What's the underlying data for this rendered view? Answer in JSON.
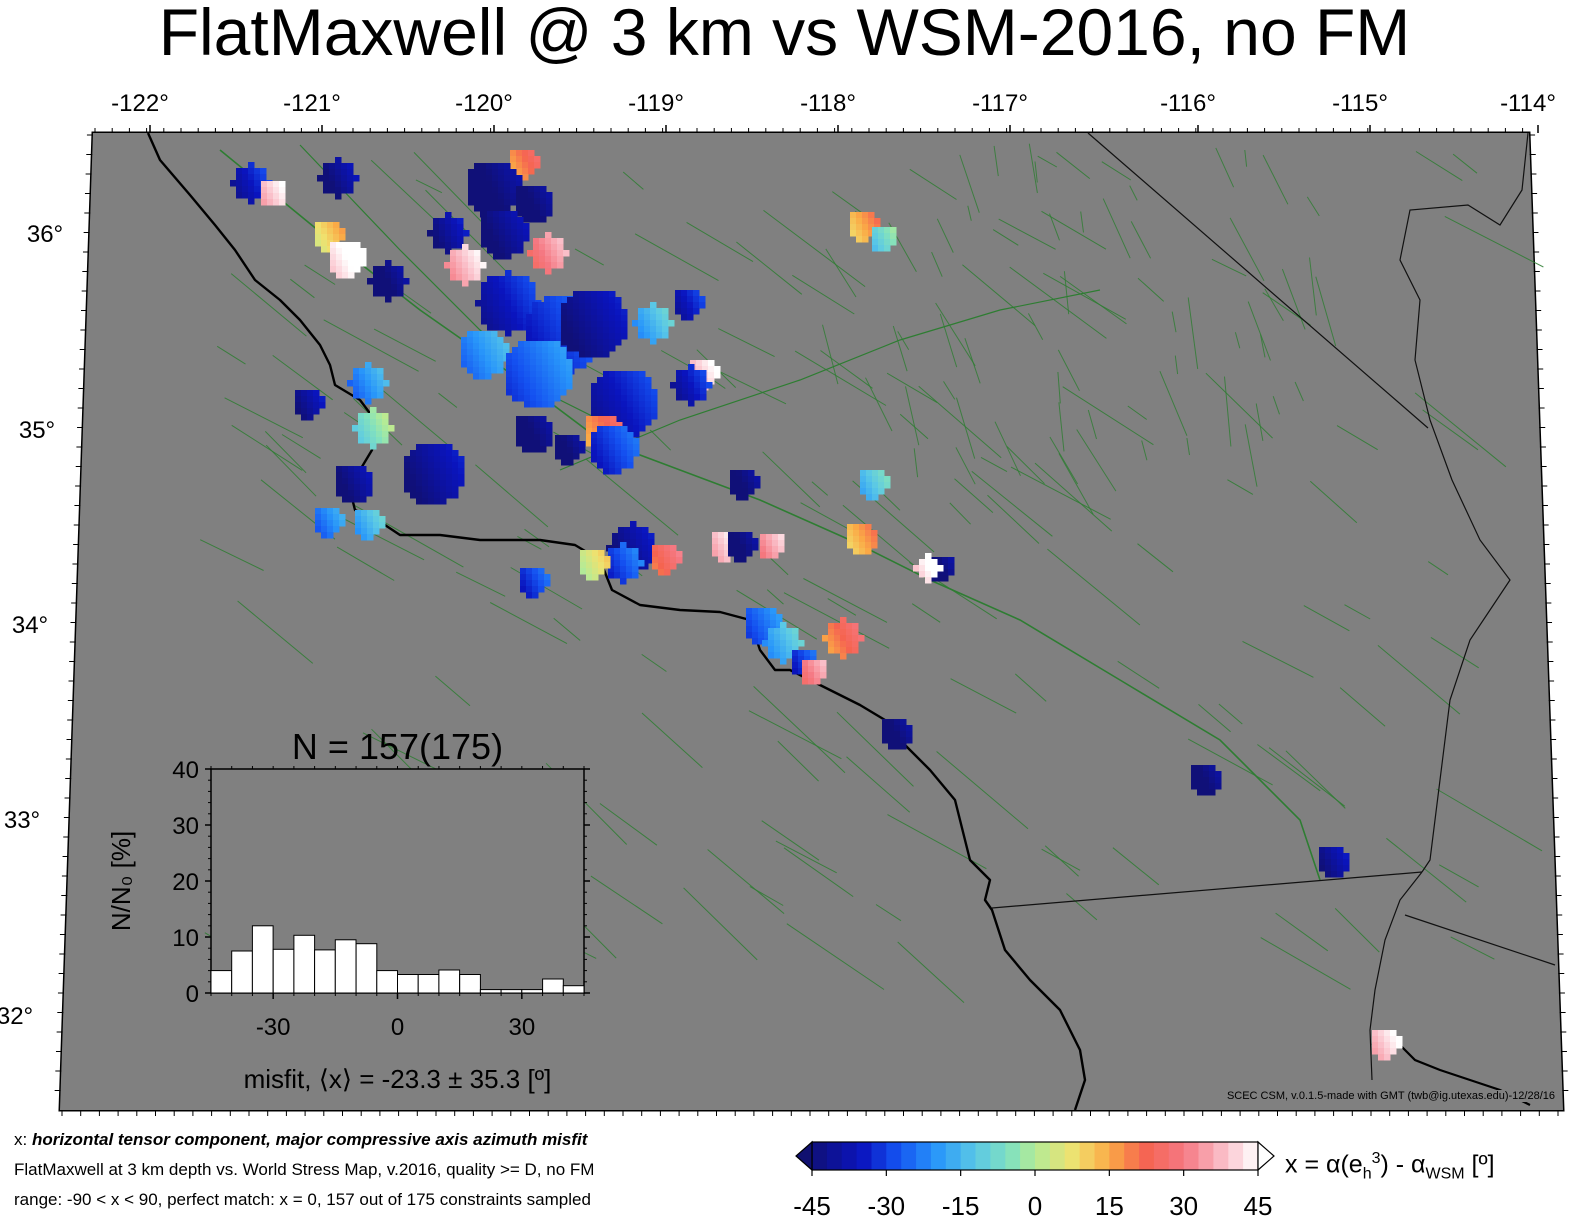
{
  "title": "FlatMaxwell @ 3 km vs WSM-2016, no FM",
  "map": {
    "lon_ticks": [
      "-122°",
      "-121°",
      "-120°",
      "-119°",
      "-118°",
      "-117°",
      "-116°",
      "-115°",
      "-114°"
    ],
    "lat_ticks": [
      "36°",
      "35°",
      "34°",
      "33°",
      "32°"
    ],
    "land_color": "#808080",
    "fault_color": "#2e7d32",
    "credit": "SCEC CSM, v.0.1.5-made with GMT (twb@ig.utexas.edu)-12/28/16"
  },
  "inset": {
    "title": "N = 157(175)",
    "ylabel": "N/N₀ [%]",
    "yticks": [
      "0",
      "10",
      "20",
      "30",
      "40"
    ],
    "xticks": [
      "-30",
      "0",
      "30"
    ],
    "xlabel": "misfit, ⟨x⟩ = -23.3 ± 35.3 [º]"
  },
  "chart_data": {
    "type": "bar",
    "title": "N = 157(175)",
    "xlabel": "misfit, ⟨x⟩ = -23.3 ± 35.3 [º]",
    "ylabel": "N/N0 [%]",
    "xlim": [
      -45,
      45
    ],
    "ylim": [
      0,
      40
    ],
    "bin_width": 5,
    "bin_starts": [
      -45,
      -40,
      -35,
      -30,
      -25,
      -20,
      -15,
      -10,
      -5,
      0,
      5,
      10,
      15,
      20,
      25,
      30,
      35,
      40
    ],
    "values": [
      4,
      7.5,
      12,
      7.8,
      10.3,
      7.7,
      9.5,
      8.8,
      4,
      3.3,
      3.3,
      4.1,
      3.3,
      0.6,
      0.6,
      0.6,
      2.5,
      1.3
    ]
  },
  "colorbar": {
    "ticks": [
      "-45",
      "-30",
      "-15",
      "0",
      "15",
      "30",
      "45"
    ],
    "label": "x = α(eₕ³) - α_WSM [º]"
  },
  "caption": {
    "line1_prefix": "x: ",
    "line1_bold": "horizontal tensor component, major compressive axis azimuth misfit",
    "line2": "FlatMaxwell at 3 km depth vs.  World Stress Map, v.2016, quality >= D, no FM",
    "line3": "range: -90 < x < 90, perfect match: x = 0, 157 out of 175 constraints sampled"
  }
}
